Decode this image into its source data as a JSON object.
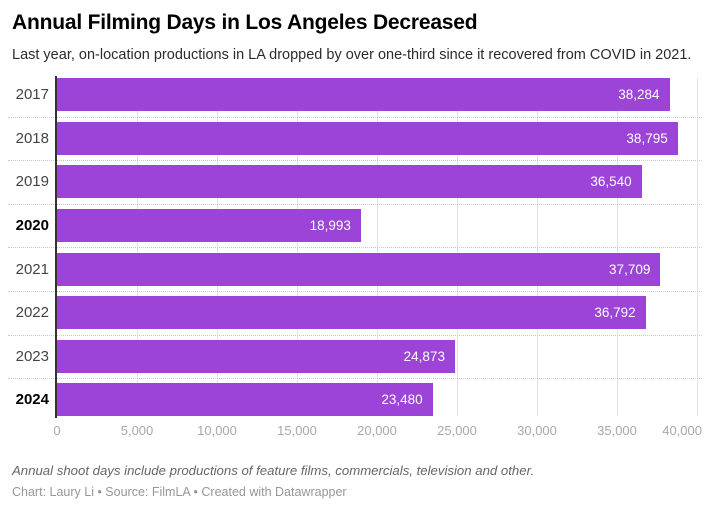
{
  "header": {
    "title": "Annual Filming Days in Los Angeles Decreased",
    "subtitle": "Last year, on-location productions in LA dropped by over one-third since it recovered from COVID in 2021."
  },
  "chart_data": {
    "type": "bar",
    "orientation": "horizontal",
    "title": "Annual Filming Days in Los Angeles Decreased",
    "categories": [
      "2017",
      "2018",
      "2019",
      "2020",
      "2021",
      "2022",
      "2023",
      "2024"
    ],
    "values": [
      38284,
      38795,
      36540,
      18993,
      37709,
      36792,
      24873,
      23480
    ],
    "value_labels": [
      "38,284",
      "38,795",
      "36,540",
      "18,993",
      "37,709",
      "36,792",
      "24,873",
      "23,480"
    ],
    "highlighted_categories": [
      "2020",
      "2024"
    ],
    "xlabel": "",
    "ylabel": "",
    "xlim": [
      0,
      40000
    ],
    "x_ticks": [
      0,
      5000,
      10000,
      15000,
      20000,
      25000,
      30000,
      35000,
      40000
    ],
    "x_tick_labels": [
      "0",
      "5,000",
      "10,000",
      "15,000",
      "20,000",
      "25,000",
      "30,000",
      "35,000",
      "40,000"
    ],
    "bar_color": "#9c43d8",
    "axis_color": "#333333",
    "grid": "vertical solid gridlines at ticks, dotted horizontal row separators",
    "legend": "none"
  },
  "footer": {
    "note": "Annual shoot days include productions of feature films, commercials, television and other.",
    "byline": "Chart: Laury Li • Source: FilmLA • Created with Datawrapper"
  }
}
